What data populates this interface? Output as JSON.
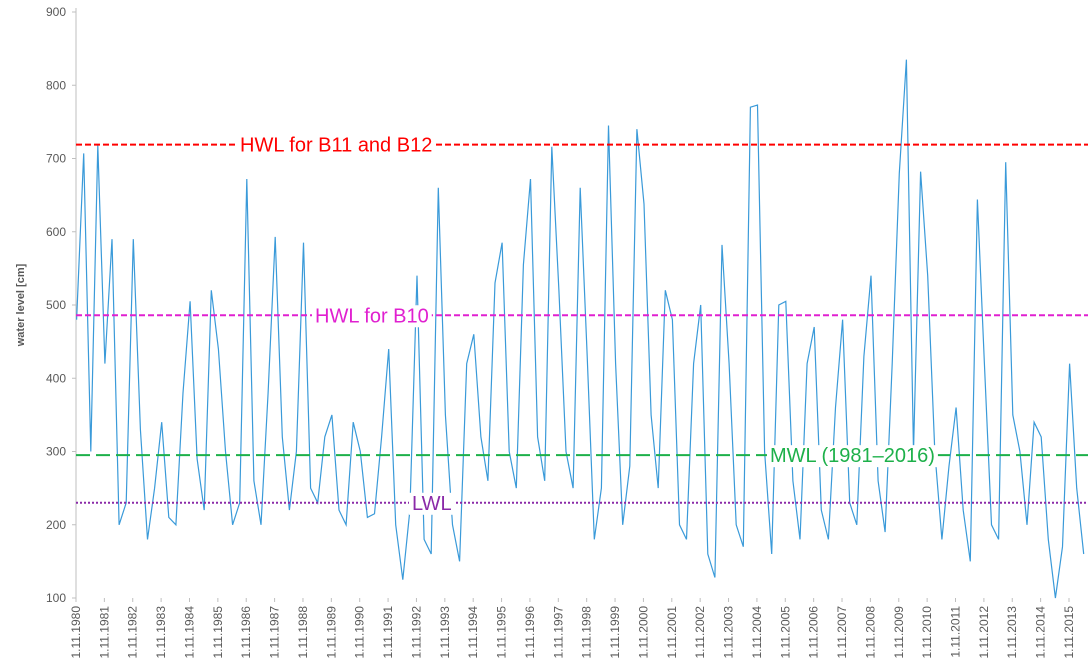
{
  "chart_data": {
    "type": "line",
    "y_label": "water level [cm]",
    "ylim": [
      100,
      900
    ],
    "yticks": [
      100,
      200,
      300,
      400,
      500,
      600,
      700,
      800,
      900
    ],
    "xlim": [
      1980.83,
      2016.5
    ],
    "xticks": [
      {
        "value": 1980.83,
        "label": "1.11.1980"
      },
      {
        "value": 1981.83,
        "label": "1.11.1981"
      },
      {
        "value": 1982.83,
        "label": "1.11.1982"
      },
      {
        "value": 1983.83,
        "label": "1.11.1983"
      },
      {
        "value": 1984.83,
        "label": "1.11.1984"
      },
      {
        "value": 1985.83,
        "label": "1.11.1985"
      },
      {
        "value": 1986.83,
        "label": "1.11.1986"
      },
      {
        "value": 1987.83,
        "label": "1.11.1987"
      },
      {
        "value": 1988.83,
        "label": "1.11.1988"
      },
      {
        "value": 1989.83,
        "label": "1.11.1989"
      },
      {
        "value": 1990.83,
        "label": "1.11.1990"
      },
      {
        "value": 1991.83,
        "label": "1.11.1991"
      },
      {
        "value": 1992.83,
        "label": "1.11.1992"
      },
      {
        "value": 1993.83,
        "label": "1.11.1993"
      },
      {
        "value": 1994.83,
        "label": "1.11.1994"
      },
      {
        "value": 1995.83,
        "label": "1.11.1995"
      },
      {
        "value": 1996.83,
        "label": "1.11.1996"
      },
      {
        "value": 1997.83,
        "label": "1.11.1997"
      },
      {
        "value": 1998.83,
        "label": "1.11.1998"
      },
      {
        "value": 1999.83,
        "label": "1.11.1999"
      },
      {
        "value": 2000.83,
        "label": "1.11.2000"
      },
      {
        "value": 2001.83,
        "label": "1.11.2001"
      },
      {
        "value": 2002.83,
        "label": "1.11.2002"
      },
      {
        "value": 2003.83,
        "label": "1.11.2003"
      },
      {
        "value": 2004.83,
        "label": "1.11.2004"
      },
      {
        "value": 2005.83,
        "label": "1.11.2005"
      },
      {
        "value": 2006.83,
        "label": "1.11.2006"
      },
      {
        "value": 2007.83,
        "label": "1.11.2007"
      },
      {
        "value": 2008.83,
        "label": "1.11.2008"
      },
      {
        "value": 2009.83,
        "label": "1.11.2009"
      },
      {
        "value": 2010.83,
        "label": "1.11.2010"
      },
      {
        "value": 2011.83,
        "label": "1.11.2011"
      },
      {
        "value": 2012.83,
        "label": "1.11.2012"
      },
      {
        "value": 2013.83,
        "label": "1.11.2013"
      },
      {
        "value": 2014.83,
        "label": "1.11.2014"
      },
      {
        "value": 2015.83,
        "label": "1.11.2015"
      }
    ],
    "x": [
      1980.85,
      1981.1,
      1981.35,
      1981.6,
      1981.85,
      1982.1,
      1982.35,
      1982.6,
      1982.85,
      1983.1,
      1983.35,
      1983.6,
      1983.85,
      1984.1,
      1984.35,
      1984.6,
      1984.85,
      1985.1,
      1985.35,
      1985.6,
      1985.85,
      1986.1,
      1986.35,
      1986.6,
      1986.85,
      1987.1,
      1987.35,
      1987.6,
      1987.85,
      1988.1,
      1988.35,
      1988.6,
      1988.85,
      1989.1,
      1989.35,
      1989.6,
      1989.85,
      1990.1,
      1990.35,
      1990.6,
      1990.85,
      1991.1,
      1991.35,
      1991.6,
      1991.85,
      1992.1,
      1992.35,
      1992.6,
      1992.85,
      1993.1,
      1993.35,
      1993.6,
      1993.85,
      1994.1,
      1994.35,
      1994.6,
      1994.85,
      1995.1,
      1995.35,
      1995.6,
      1995.85,
      1996.1,
      1996.35,
      1996.6,
      1996.85,
      1997.1,
      1997.35,
      1997.6,
      1997.85,
      1998.1,
      1998.35,
      1998.6,
      1998.85,
      1999.1,
      1999.35,
      1999.6,
      1999.85,
      2000.1,
      2000.35,
      2000.6,
      2000.85,
      2001.1,
      2001.35,
      2001.6,
      2001.85,
      2002.1,
      2002.35,
      2002.6,
      2002.85,
      2003.1,
      2003.35,
      2003.6,
      2003.85,
      2004.1,
      2004.35,
      2004.6,
      2004.85,
      2005.1,
      2005.35,
      2005.6,
      2005.85,
      2006.1,
      2006.35,
      2006.6,
      2006.85,
      2007.1,
      2007.35,
      2007.6,
      2007.85,
      2008.1,
      2008.35,
      2008.6,
      2008.85,
      2009.1,
      2009.35,
      2009.6,
      2009.85,
      2010.1,
      2010.35,
      2010.6,
      2010.85,
      2011.1,
      2011.35,
      2011.6,
      2011.85,
      2012.1,
      2012.35,
      2012.6,
      2012.85,
      2013.1,
      2013.35,
      2013.6,
      2013.85,
      2014.1,
      2014.35,
      2014.6,
      2014.85,
      2015.1,
      2015.35,
      2015.6,
      2015.85,
      2016.1,
      2016.35
    ],
    "series": [
      {
        "color": "#3a9ad9",
        "values": [
          480,
          707,
          300,
          718,
          420,
          590,
          200,
          230,
          590,
          330,
          180,
          250,
          340,
          210,
          200,
          380,
          505,
          290,
          220,
          520,
          440,
          300,
          200,
          230,
          672,
          260,
          200,
          380,
          593,
          320,
          220,
          300,
          585,
          250,
          230,
          320,
          350,
          220,
          200,
          340,
          300,
          210,
          215,
          320,
          440,
          200,
          125,
          220,
          540,
          180,
          160,
          660,
          350,
          200,
          150,
          420,
          460,
          320,
          260,
          530,
          585,
          300,
          250,
          555,
          672,
          320,
          260,
          716,
          520,
          300,
          250,
          660,
          430,
          180,
          250,
          745,
          420,
          200,
          280,
          740,
          638,
          350,
          250,
          520,
          480,
          200,
          180,
          420,
          500,
          160,
          128,
          582,
          420,
          200,
          170,
          770,
          773,
          300,
          160,
          500,
          505,
          260,
          180,
          420,
          470,
          220,
          180,
          360,
          480,
          230,
          200,
          430,
          540,
          260,
          190,
          420,
          680,
          835,
          300,
          682,
          540,
          300,
          180,
          280,
          360,
          220,
          150,
          644,
          420,
          200,
          180,
          695,
          350,
          300,
          200,
          340,
          320,
          180,
          100,
          170,
          420,
          250,
          160
        ]
      }
    ],
    "reference_lines": [
      {
        "name": "HWL for B11 and B12",
        "value": 719,
        "color": "#ff0000",
        "style": "dashed"
      },
      {
        "name": "HWL for B10",
        "value": 486,
        "color": "#e020d0",
        "style": "dashed"
      },
      {
        "name": "MWL (1981–2016)",
        "value": 295,
        "color": "#1db04a",
        "style": "longdash"
      },
      {
        "name": "LWL",
        "value": 230,
        "color": "#8a2aa8",
        "style": "dotted"
      }
    ]
  }
}
